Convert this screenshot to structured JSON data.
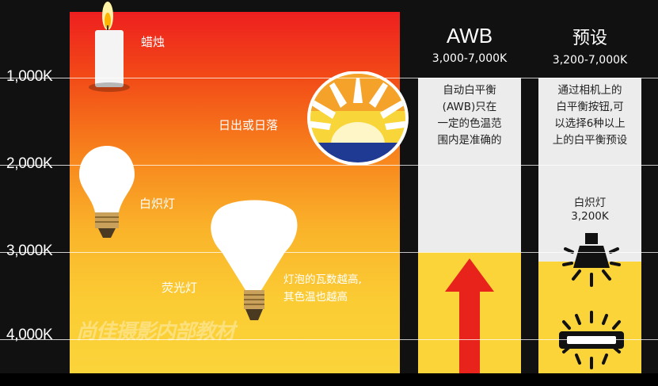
{
  "scale": {
    "ticks": [
      "1,000K",
      "2,000K",
      "3,000K",
      "4,000K"
    ]
  },
  "sources": {
    "candle": "蜡烛",
    "sunrise": "日出或日落",
    "incandescent": "白炽灯",
    "fluorescent": "荧光灯",
    "bulb_note": [
      "灯泡的瓦数越高,",
      "其色温也越高"
    ]
  },
  "awb": {
    "title": "AWB",
    "range": "3,000-7,000K",
    "desc_lines": [
      "自动白平衡",
      "(AWB)只在",
      "一定的色温范",
      "围内是准确的"
    ]
  },
  "preset": {
    "title": "预设",
    "range": "3,200-7,000K",
    "desc_lines": [
      "通过相机上的",
      "白平衡按钮,可",
      "以选择6种以上",
      "上的白平衡预设"
    ],
    "icon_label": "白炽灯",
    "icon_value": "3,200K"
  },
  "watermark": "尚佳摄影内部教材",
  "colors": {
    "top": "#ee1f1f",
    "bottom": "#fbd43a",
    "arrow": "#e8231c",
    "panel_gray": "#ececec"
  }
}
